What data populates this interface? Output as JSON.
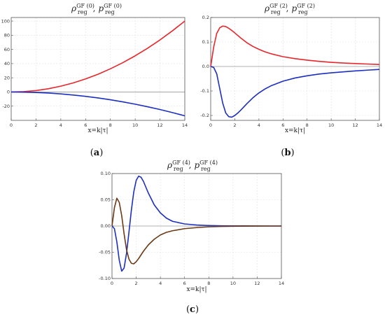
{
  "chart_data": [
    {
      "type": "line",
      "caption": "a",
      "title": {
        "main1": "ρ",
        "sup1": "GF (0)",
        "sub1": "reg",
        "sep": ",",
        "main2": "p",
        "sup2": "GF (0)",
        "sub2": "reg"
      },
      "xlabel": "x=k|τ|",
      "xlim": [
        0,
        14
      ],
      "ylim": [
        -40,
        105
      ],
      "xticks": [
        0,
        2,
        4,
        6,
        8,
        10,
        12,
        14
      ],
      "yticks": [
        -20,
        0,
        20,
        40,
        60,
        80,
        100
      ],
      "series": [
        {
          "color": "#e8262c",
          "x": [
            0,
            1,
            2,
            3,
            4,
            5,
            6,
            7,
            8,
            9,
            10,
            11,
            12,
            13,
            14
          ],
          "y": [
            0,
            0.5,
            2,
            4.6,
            8.2,
            12.8,
            18.4,
            25,
            32.7,
            41.3,
            51,
            61.7,
            73.4,
            86.2,
            100
          ]
        },
        {
          "color": "#1c2fc1",
          "x": [
            0,
            1,
            2,
            3,
            4,
            5,
            6,
            7,
            8,
            9,
            10,
            11,
            12,
            13,
            14
          ],
          "y": [
            0,
            -0.2,
            -0.7,
            -1.5,
            -2.7,
            -4.3,
            -6.2,
            -8.4,
            -11,
            -13.9,
            -17.2,
            -20.8,
            -24.7,
            -29,
            -33.6
          ]
        }
      ]
    },
    {
      "type": "line",
      "caption": "b",
      "title": {
        "main1": "ρ",
        "sup1": "GF (2)",
        "sub1": "reg",
        "sep": ",",
        "main2": "p",
        "sup2": "GF (2)",
        "sub2": "reg"
      },
      "xlabel": "x=k|τ|",
      "xlim": [
        0,
        14
      ],
      "ylim": [
        -0.22,
        0.2
      ],
      "xticks": [
        0,
        2,
        4,
        6,
        8,
        10,
        12,
        14
      ],
      "yticks": [
        -0.2,
        -0.1,
        0.0,
        0.1,
        0.2
      ],
      "ytickLabels": [
        "-0.2",
        "-0.1",
        "0.0",
        "0.1",
        "0.2"
      ],
      "series": [
        {
          "color": "#e8262c",
          "x": [
            0,
            0.25,
            0.5,
            0.75,
            1,
            1.25,
            1.5,
            1.75,
            2,
            2.5,
            3,
            3.5,
            4,
            4.5,
            5,
            6,
            7,
            8,
            9,
            10,
            11,
            12,
            13,
            14
          ],
          "y": [
            0,
            0.08,
            0.135,
            0.158,
            0.165,
            0.163,
            0.156,
            0.147,
            0.137,
            0.116,
            0.097,
            0.082,
            0.07,
            0.06,
            0.052,
            0.04,
            0.032,
            0.026,
            0.021,
            0.017,
            0.014,
            0.012,
            0.01,
            0.008
          ]
        },
        {
          "color": "#1c2fc1",
          "x": [
            0,
            0.25,
            0.5,
            0.75,
            1,
            1.25,
            1.5,
            1.75,
            2,
            2.25,
            2.5,
            3,
            3.5,
            4,
            4.5,
            5,
            6,
            7,
            8,
            9,
            10,
            11,
            12,
            13,
            14
          ],
          "y": [
            0,
            -0.004,
            -0.03,
            -0.09,
            -0.15,
            -0.19,
            -0.205,
            -0.207,
            -0.2,
            -0.19,
            -0.178,
            -0.152,
            -0.128,
            -0.108,
            -0.092,
            -0.079,
            -0.06,
            -0.047,
            -0.038,
            -0.031,
            -0.026,
            -0.022,
            -0.018,
            -0.015,
            -0.012
          ]
        }
      ]
    },
    {
      "type": "line",
      "caption": "c",
      "title": {
        "main1": "ρ",
        "sup1": "GF (4)",
        "sub1": "reg",
        "sep": ",",
        "main2": "p",
        "sup2": "GF (4)",
        "sub2": "reg"
      },
      "xlabel": "x=k|τ|",
      "xlim": [
        0,
        14
      ],
      "ylim": [
        -0.1,
        0.1
      ],
      "xticks": [
        0,
        2,
        4,
        6,
        8,
        10,
        12,
        14
      ],
      "yticks": [
        -0.1,
        -0.05,
        0.0,
        0.05,
        0.1
      ],
      "ytickLabels": [
        "-0.10",
        "-0.05",
        "0.00",
        "0.05",
        "0.10"
      ],
      "series": [
        {
          "color": "#1c2fc1",
          "x": [
            0,
            0.2,
            0.4,
            0.6,
            0.8,
            1,
            1.2,
            1.4,
            1.6,
            1.8,
            2,
            2.2,
            2.4,
            2.6,
            2.8,
            3,
            3.5,
            4,
            4.5,
            5,
            6,
            7,
            8,
            9,
            10,
            11,
            12,
            13,
            14
          ],
          "y": [
            0,
            -0.005,
            -0.03,
            -0.065,
            -0.086,
            -0.08,
            -0.052,
            -0.012,
            0.03,
            0.065,
            0.087,
            0.095,
            0.093,
            0.085,
            0.074,
            0.063,
            0.04,
            0.025,
            0.015,
            0.009,
            0.004,
            0.002,
            0.001,
            0.0005,
            0.0003,
            0.0002,
            0.0001,
            0,
            0
          ]
        },
        {
          "color": "#6b3a16",
          "x": [
            0,
            0.2,
            0.4,
            0.6,
            0.8,
            1,
            1.2,
            1.4,
            1.6,
            1.8,
            2,
            2.2,
            2.4,
            2.6,
            3,
            3.5,
            4,
            4.5,
            5,
            6,
            7,
            8,
            9,
            10,
            11,
            12,
            13,
            14
          ],
          "y": [
            0,
            0.035,
            0.053,
            0.045,
            0.02,
            -0.015,
            -0.045,
            -0.063,
            -0.071,
            -0.072,
            -0.068,
            -0.062,
            -0.055,
            -0.048,
            -0.036,
            -0.025,
            -0.017,
            -0.012,
            -0.009,
            -0.005,
            -0.003,
            -0.0015,
            -0.0008,
            -0.0004,
            -0.0002,
            -0.0001,
            0,
            0
          ]
        }
      ]
    }
  ],
  "captions": {
    "a": {
      "open": "(",
      "letter": "a",
      "close": ")"
    },
    "b": {
      "open": "(",
      "letter": "b",
      "close": ")"
    },
    "c": {
      "open": "(",
      "letter": "c",
      "close": ")"
    }
  }
}
